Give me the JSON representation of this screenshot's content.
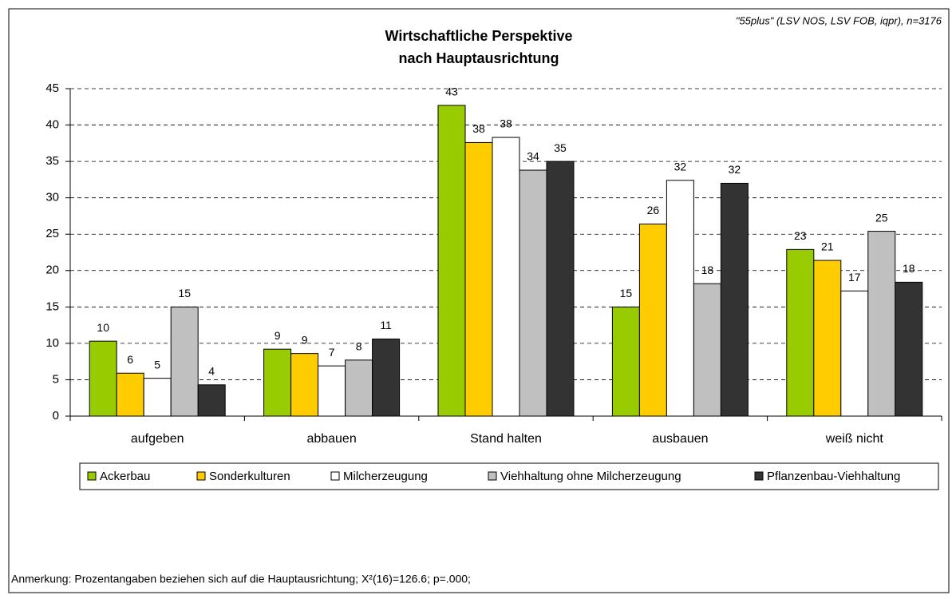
{
  "chart_data": {
    "type": "bar",
    "title": [
      "Wirtschaftliche Perspektive",
      "nach Hauptausrichtung"
    ],
    "source": "\"55plus\" (LSV NOS, LSV FOB, iqpr), n=3176",
    "annotation": "Anmerkung: Prozentangaben beziehen sich auf die Hauptausrichtung; X²(16)=126.6; p=.000;",
    "categories": [
      "aufgeben",
      "abbauen",
      "Stand halten",
      "ausbauen",
      "weiß nicht"
    ],
    "series": [
      {
        "name": "Ackerbau",
        "color": "#99cc00",
        "values": [
          10.3,
          9.2,
          42.7,
          15.0,
          22.9
        ],
        "value_labels": [
          "10",
          "9",
          "43",
          "15",
          "23"
        ]
      },
      {
        "name": "Sonderkulturen",
        "color": "#ffcc00",
        "values": [
          5.9,
          8.6,
          37.6,
          26.4,
          21.4
        ],
        "value_labels": [
          "6",
          "9",
          "38",
          "26",
          "21"
        ]
      },
      {
        "name": "Milcherzeugung",
        "color": "#ffffff",
        "values": [
          5.2,
          6.9,
          38.3,
          32.4,
          17.2
        ],
        "value_labels": [
          "5",
          "7",
          "38",
          "32",
          "17"
        ]
      },
      {
        "name": "Viehhaltung ohne Milcherzeugung",
        "color": "#c0c0c0",
        "values": [
          15.0,
          7.7,
          33.8,
          18.2,
          25.4
        ],
        "value_labels": [
          "15",
          "8",
          "34",
          "18",
          "25"
        ]
      },
      {
        "name": "Pflanzenbau-Viehhaltung",
        "color": "#333333",
        "values": [
          4.3,
          10.6,
          35.0,
          32.0,
          18.4
        ],
        "value_labels": [
          "4",
          "11",
          "35",
          "32",
          "18"
        ]
      }
    ],
    "ylim": [
      0,
      45
    ],
    "yticks": [
      0,
      5,
      10,
      15,
      20,
      25,
      30,
      35,
      40,
      45
    ],
    "grid": true,
    "legend": "bottom"
  }
}
